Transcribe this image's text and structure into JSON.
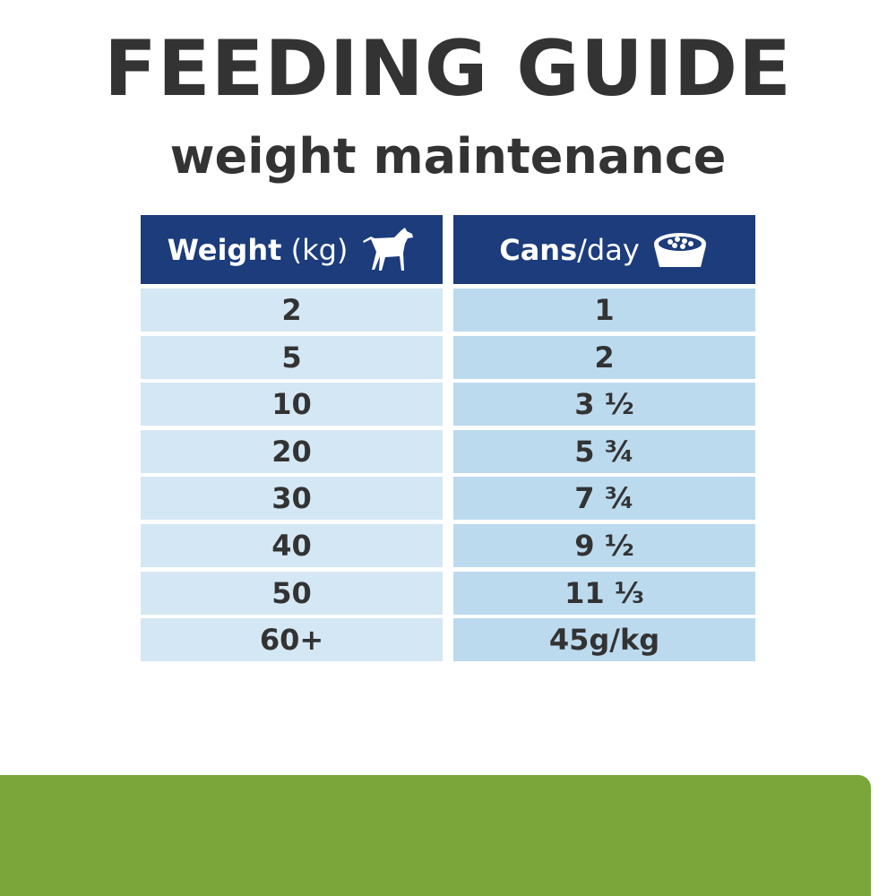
{
  "header": {
    "title": "FEEDING GUIDE",
    "subtitle": "weight maintenance"
  },
  "table": {
    "columns": [
      {
        "bold": "Weight",
        "normal": "(kg)"
      },
      {
        "bold": "Cans",
        "normal": "/day"
      }
    ],
    "rows": [
      [
        "2",
        "1"
      ],
      [
        "5",
        "2"
      ],
      [
        "10",
        "3 ½"
      ],
      [
        "20",
        "5 ¾"
      ],
      [
        "30",
        "7 ¾"
      ],
      [
        "40",
        "9 ½"
      ],
      [
        "50",
        "11 ⅓"
      ],
      [
        "60+",
        "45g/kg"
      ]
    ]
  }
}
